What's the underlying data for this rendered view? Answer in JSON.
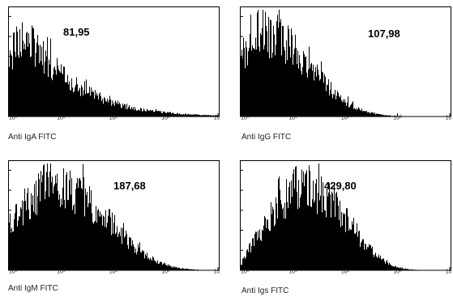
{
  "chart_data": [
    {
      "type": "area",
      "annotation": "81,95",
      "xlabel": "Anti IgA FITC",
      "x_scale": "log",
      "xlim": [
        1,
        10000
      ],
      "x_ticks": [
        "0",
        "1",
        "2",
        "3",
        "4"
      ],
      "peak_decade": 0.2,
      "spread": 1.1,
      "start_level": 0.62,
      "tail_decay": 1.2,
      "color": "#000000"
    },
    {
      "type": "area",
      "annotation": "107,98",
      "xlabel": "Anti IgG FITC",
      "x_scale": "log",
      "xlim": [
        1,
        10000
      ],
      "x_ticks": [
        "0",
        "1",
        "2",
        "3",
        "4"
      ],
      "peak_decade": 0.3,
      "spread": 1.35,
      "start_level": 0.72,
      "tail_decay": 2.4,
      "color": "#000000"
    },
    {
      "type": "area",
      "annotation": "187,68",
      "xlabel": "Anti IgM FITC",
      "x_scale": "log",
      "xlim": [
        1,
        10000
      ],
      "x_ticks": [
        "0",
        "1",
        "2",
        "3",
        "4"
      ],
      "peak_decade": 0.7,
      "spread": 1.55,
      "start_level": 0.55,
      "tail_decay": 2.6,
      "color": "#000000"
    },
    {
      "type": "area",
      "annotation": "429,80",
      "xlabel": "Anti Igs FITC",
      "x_scale": "log",
      "xlim": [
        1,
        10000
      ],
      "x_ticks": [
        "0",
        "1",
        "2",
        "3",
        "4"
      ],
      "peak_decade": 1.05,
      "spread": 1.25,
      "start_level": 0.06,
      "tail_decay": 2.7,
      "color": "#000000"
    }
  ]
}
